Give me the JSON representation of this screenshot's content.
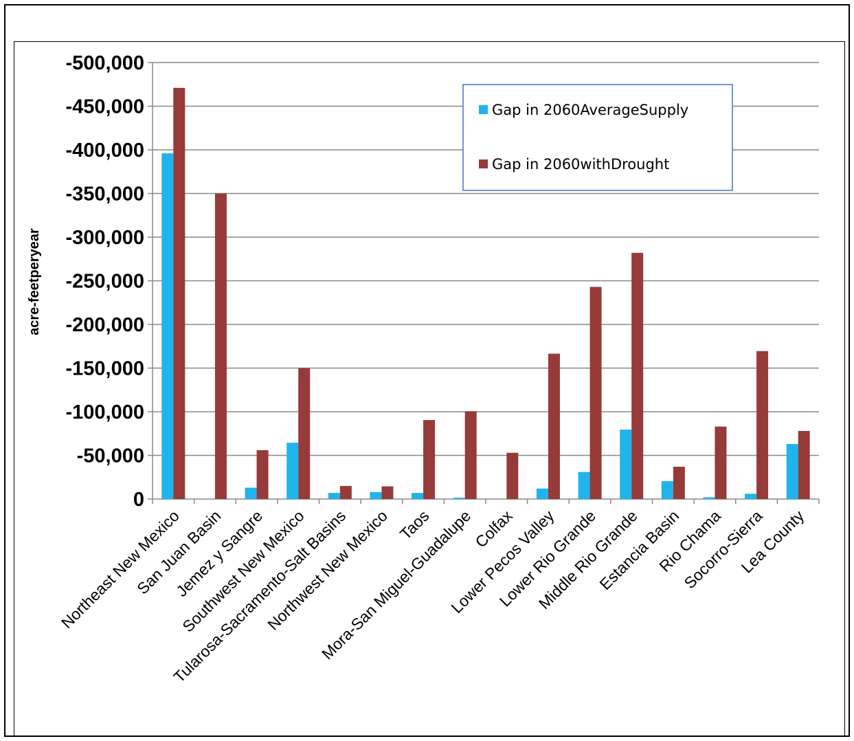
{
  "chart_data": {
    "type": "bar",
    "title": "",
    "xlabel": "",
    "ylabel": "acre-feetperyear",
    "ylim": [
      0,
      -500000
    ],
    "y_axis_inverted": true,
    "yticks": [
      0,
      -50000,
      -100000,
      -150000,
      -200000,
      -250000,
      -300000,
      -350000,
      -400000,
      -450000,
      -500000
    ],
    "ytick_labels": [
      "0",
      "-50,000",
      "-100,000",
      "-150,000",
      "-200,000",
      "-250,000",
      "-300,000",
      "-350,000",
      "-400,000",
      "-450,000",
      "-500,000"
    ],
    "grid": "horizontal",
    "legend_position": "top-right",
    "categories": [
      "Northeast New Mexico",
      "San Juan Basin",
      "Jemez y Sangre",
      "Southwest New Mexico",
      "Tularosa-Sacramento-Salt Basins",
      "Northwest New Mexico",
      "Taos",
      "Mora-San Miguel-Guadalupe",
      "Colfax",
      "Lower Pecos Valley",
      "Lower Rio Grande",
      "Middle Rio Grande",
      "Estancia Basin",
      "Rio Chama",
      "Socorro-Sierra",
      "Lea County"
    ],
    "series": [
      {
        "name": "Gap in 2060AverageSupply",
        "color": "#1fb4ec",
        "values": [
          -396000,
          0,
          -13000,
          -64500,
          -7000,
          -8000,
          -7000,
          -1500,
          0,
          -12000,
          -31000,
          -79500,
          -20500,
          -2000,
          -6000,
          -63000
        ]
      },
      {
        "name": "Gap in 2060withDrought",
        "color": "#973a3a",
        "values": [
          -471000,
          -350000,
          -56000,
          -150000,
          -15000,
          -14500,
          -90500,
          -100500,
          -53000,
          -166500,
          -243000,
          -282000,
          -37000,
          -83000,
          -169500,
          -78000
        ]
      }
    ]
  }
}
